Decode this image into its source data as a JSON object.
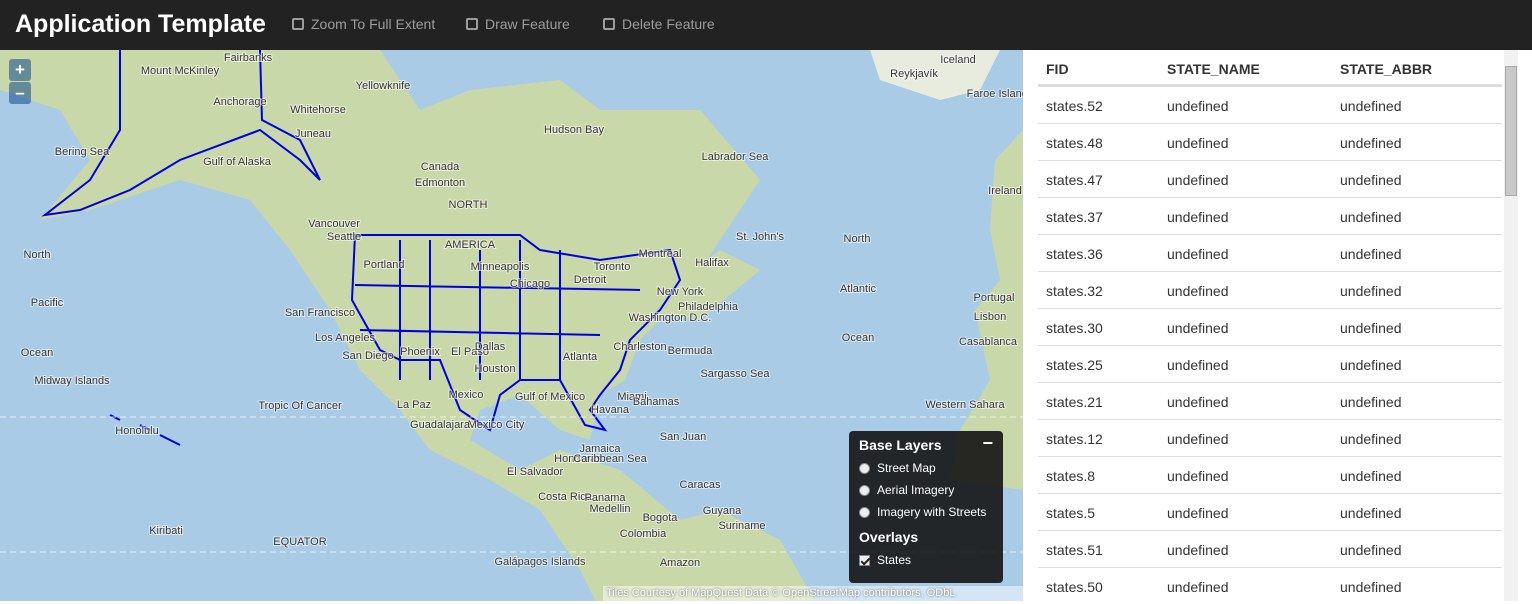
{
  "navbar": {
    "title": "Application Template",
    "buttons": [
      "Zoom To Full Extent",
      "Draw Feature",
      "Delete Feature"
    ]
  },
  "map": {
    "zoom_controls": [
      "+",
      "–"
    ],
    "labels": [
      "Iceland",
      "Reykjavík",
      "Faroe Islands",
      "Fairbanks",
      "Mount McKinley",
      "Anchorage",
      "Whitehorse",
      "Juneau",
      "Yellowknife",
      "Bering Sea",
      "Gulf of Alaska",
      "Canada",
      "Edmonton",
      "NORTH",
      "AMERICA",
      "Hudson Bay",
      "Labrador Sea",
      "St. John's",
      "Vancouver",
      "Seattle",
      "Portland",
      "Minneapolis",
      "Toronto",
      "Detroit",
      "Chicago",
      "Montreal",
      "Halifax",
      "New York",
      "Philadelphia",
      "Washington D.C.",
      "Charleston",
      "Atlanta",
      "San Francisco",
      "Los Angeles",
      "San Diego",
      "Phoenix",
      "El Paso",
      "Houston",
      "Dallas",
      "Miami",
      "Bermuda",
      "Sargasso Sea",
      "Bahamas",
      "Havana",
      "Gulf of Mexico",
      "Mexico",
      "La Paz",
      "Mexico City",
      "Guadalajara",
      "Tropic Of Cancer",
      "North",
      "Pacific",
      "Ocean",
      "North",
      "Atlantic",
      "Ocean",
      "Midway Islands",
      "Honolulu",
      "Kiribati",
      "EQUATOR",
      "Galápagos Islands",
      "Jamaica",
      "Honduras",
      "Caribbean Sea",
      "El Salvador",
      "San Juan",
      "Costa Rica",
      "Panama",
      "Medellin",
      "Caracas",
      "Bogota",
      "Colombia",
      "Guyana",
      "Suriname",
      "Amazon",
      "Ireland",
      "Portugal",
      "Lisbon",
      "Casablanca",
      "Western Sahara"
    ],
    "attribution": "Tiles Courtesy of MapQuest  Data © OpenStreetMap contributors, ODbL"
  },
  "layer_switcher": {
    "collapse": "−",
    "base_title": "Base Layers",
    "base_layers": [
      {
        "label": "Street Map",
        "selected": true
      },
      {
        "label": "Aerial Imagery",
        "selected": false
      },
      {
        "label": "Imagery with Streets",
        "selected": false
      }
    ],
    "overlays_title": "Overlays",
    "overlays": [
      {
        "label": "States",
        "checked": true
      }
    ]
  },
  "table": {
    "columns": [
      "FID",
      "STATE_NAME",
      "STATE_ABBR"
    ],
    "rows": [
      [
        "states.52",
        "undefined",
        "undefined"
      ],
      [
        "states.48",
        "undefined",
        "undefined"
      ],
      [
        "states.47",
        "undefined",
        "undefined"
      ],
      [
        "states.37",
        "undefined",
        "undefined"
      ],
      [
        "states.36",
        "undefined",
        "undefined"
      ],
      [
        "states.32",
        "undefined",
        "undefined"
      ],
      [
        "states.30",
        "undefined",
        "undefined"
      ],
      [
        "states.25",
        "undefined",
        "undefined"
      ],
      [
        "states.21",
        "undefined",
        "undefined"
      ],
      [
        "states.12",
        "undefined",
        "undefined"
      ],
      [
        "states.8",
        "undefined",
        "undefined"
      ],
      [
        "states.5",
        "undefined",
        "undefined"
      ],
      [
        "states.51",
        "undefined",
        "undefined"
      ],
      [
        "states.50",
        "undefined",
        "undefined"
      ]
    ]
  }
}
